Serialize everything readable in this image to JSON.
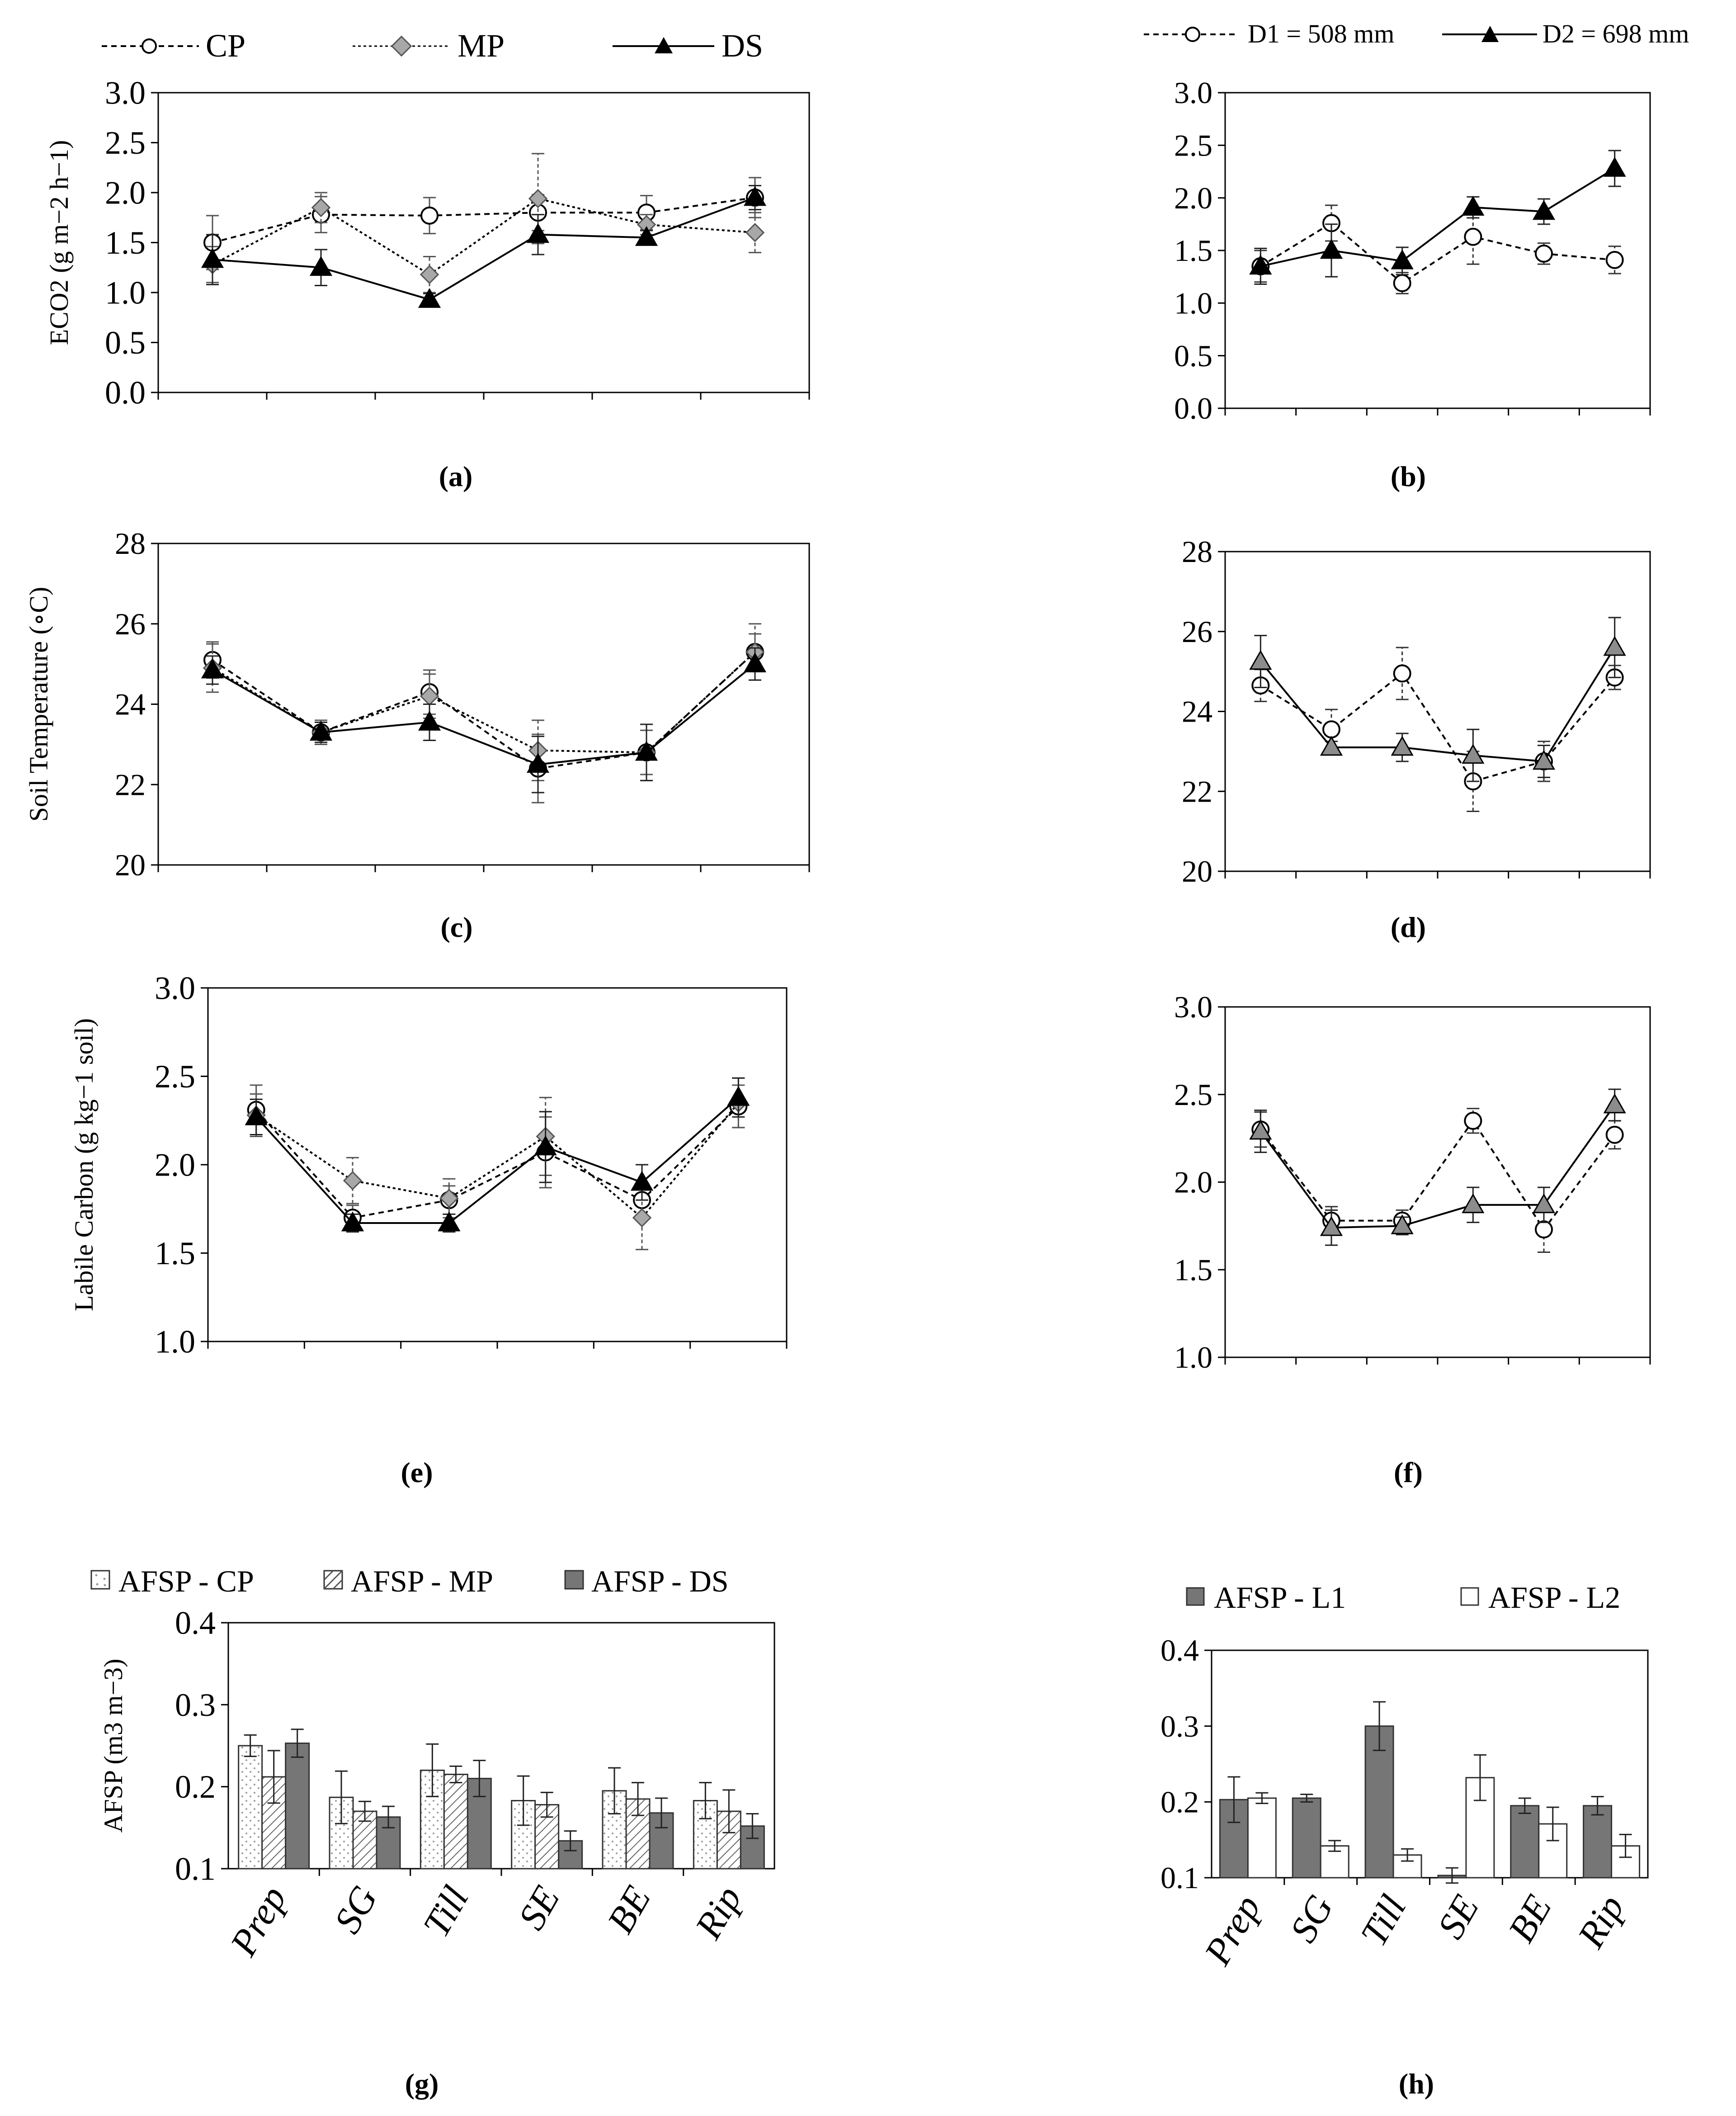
{
  "figure": {
    "panel_labels": [
      "(a)",
      "(b)",
      "(c)",
      "(d)",
      "(e)",
      "(f)",
      "(g)",
      "(h)"
    ]
  },
  "legends": {
    "tillage": {
      "items": [
        "CP",
        "MP",
        "DS"
      ]
    },
    "deficit": {
      "items": [
        "D1 = 508 mm",
        "D2 = 698 mm"
      ]
    },
    "afsp_tillage": {
      "items": [
        "AFSP - CP",
        "AFSP - MP",
        "AFSP - DS"
      ]
    },
    "afsp_layer": {
      "items": [
        "AFSP - L1",
        "AFSP - L2"
      ]
    }
  },
  "colors": {
    "cp_fill": "#ffffff",
    "mp_fill": "#a8a8a8",
    "ds_fill": "#000000",
    "tri_grey": "#8c8c8c",
    "bar_dark": "#767676",
    "bar_white": "#ffffff"
  },
  "chart_data": [
    {
      "id": "a",
      "type": "line",
      "ylabel": "ECO2 (g m−2 h−1)",
      "ylim": [
        0,
        3.0
      ],
      "yticks": [
        "0.0",
        "0.5",
        "1.0",
        "1.5",
        "2.0",
        "2.5",
        "3.0"
      ],
      "series": [
        {
          "name": "CP",
          "values": [
            1.5,
            1.78,
            1.77,
            1.8,
            1.8,
            1.95
          ],
          "errors": [
            0.27,
            0.18,
            0.18,
            0.18,
            0.17,
            0.2
          ]
        },
        {
          "name": "MP",
          "values": [
            1.28,
            1.85,
            1.18,
            1.94,
            1.68,
            1.6
          ],
          "errors": [
            0.18,
            0.15,
            0.18,
            0.45,
            0.1,
            0.2
          ]
        },
        {
          "name": "DS",
          "values": [
            1.33,
            1.25,
            0.93,
            1.58,
            1.55,
            1.95
          ],
          "errors": [
            0.25,
            0.18,
            0.06,
            0.2,
            0.07,
            0.12
          ]
        }
      ]
    },
    {
      "id": "b",
      "type": "line",
      "ylabel": "",
      "ylim": [
        0,
        3.0
      ],
      "yticks": [
        "0.0",
        "0.5",
        "1.0",
        "1.5",
        "2.0",
        "2.5",
        "3.0"
      ],
      "series": [
        {
          "name": "D1 = 508 mm",
          "values": [
            1.35,
            1.76,
            1.19,
            1.63,
            1.47,
            1.41
          ],
          "errors": [
            0.15,
            0.17,
            0.1,
            0.26,
            0.1,
            0.13
          ]
        },
        {
          "name": "D2 = 698 mm",
          "values": [
            1.35,
            1.5,
            1.4,
            1.91,
            1.87,
            2.28
          ],
          "errors": [
            0.17,
            0.25,
            0.13,
            0.1,
            0.12,
            0.17
          ]
        }
      ]
    },
    {
      "id": "c",
      "type": "line",
      "ylabel": "Soil Temperature (∘C)",
      "ylim": [
        20,
        28
      ],
      "yticks": [
        "20",
        "22",
        "24",
        "26",
        "28"
      ],
      "series": [
        {
          "name": "CP",
          "values": [
            25.1,
            23.3,
            24.3,
            22.4,
            22.8,
            25.3
          ],
          "errors": [
            0.45,
            0.3,
            0.55,
            0.85,
            0.55,
            0.45
          ]
        },
        {
          "name": "MP",
          "values": [
            24.9,
            23.3,
            24.2,
            22.85,
            22.8,
            25.3
          ],
          "errors": [
            0.6,
            0.25,
            0.55,
            0.75,
            0.7,
            0.7
          ]
        },
        {
          "name": "DS",
          "values": [
            24.85,
            23.3,
            23.55,
            22.5,
            22.8,
            25.0
          ],
          "errors": [
            0.35,
            0.25,
            0.45,
            0.7,
            0.7,
            0.4
          ]
        }
      ]
    },
    {
      "id": "d",
      "type": "line",
      "ylabel": "",
      "ylim": [
        20,
        28
      ],
      "yticks": [
        "20",
        "22",
        "24",
        "26",
        "28"
      ],
      "series": [
        {
          "name": "D1 = 508 mm",
          "values": [
            24.65,
            23.55,
            24.95,
            22.25,
            22.75,
            24.85
          ],
          "errors": [
            0.4,
            0.5,
            0.65,
            0.75,
            0.5,
            0.3
          ]
        },
        {
          "name": "D2 = 698 mm",
          "values": [
            25.25,
            23.1,
            23.1,
            22.9,
            22.75,
            25.6
          ],
          "errors": [
            0.65,
            0.15,
            0.35,
            0.65,
            0.4,
            0.75
          ]
        }
      ]
    },
    {
      "id": "e",
      "type": "line",
      "ylabel": "Labile Carbon (g kg−1 soil)",
      "ylim": [
        1.0,
        3.0
      ],
      "yticks": [
        "1.0",
        "1.5",
        "2.0",
        "2.5",
        "3.0"
      ],
      "series": [
        {
          "name": "CP",
          "values": [
            2.31,
            1.7,
            1.8,
            2.07,
            1.8,
            2.33
          ],
          "errors": [
            0.14,
            0.07,
            0.08,
            0.2,
            0.1,
            0.12
          ]
        },
        {
          "name": "MP",
          "values": [
            2.28,
            1.91,
            1.81,
            2.16,
            1.7,
            2.35
          ],
          "errors": [
            0.12,
            0.13,
            0.11,
            0.22,
            0.18,
            0.14
          ]
        },
        {
          "name": "DS",
          "values": [
            2.27,
            1.67,
            1.67,
            2.1,
            1.9,
            2.38
          ],
          "errors": [
            0.1,
            0.05,
            0.05,
            0.2,
            0.1,
            0.11
          ]
        }
      ]
    },
    {
      "id": "f",
      "type": "line",
      "ylabel": "",
      "ylim": [
        1.0,
        3.0
      ],
      "yticks": [
        "1.0",
        "1.5",
        "2.0",
        "2.5",
        "3.0"
      ],
      "series": [
        {
          "name": "D1 = 508 mm",
          "values": [
            2.3,
            1.78,
            1.78,
            2.35,
            1.73,
            2.27
          ],
          "errors": [
            0.1,
            0.08,
            0.06,
            0.07,
            0.13,
            0.08
          ]
        },
        {
          "name": "D2 = 698 mm",
          "values": [
            2.29,
            1.74,
            1.75,
            1.87,
            1.87,
            2.44
          ],
          "errors": [
            0.12,
            0.1,
            0.05,
            0.1,
            0.1,
            0.09
          ]
        }
      ]
    },
    {
      "id": "g",
      "type": "bar",
      "ylabel": "AFSP (m3 m−3)",
      "categories": [
        "Prep",
        "SG",
        "Till",
        "SE",
        "BE",
        "Rip"
      ],
      "ylim": [
        0.1,
        0.4
      ],
      "yticks": [
        "0.1",
        "0.2",
        "0.3",
        "0.4"
      ],
      "series": [
        {
          "name": "AFSP - CP",
          "values": [
            0.25,
            0.187,
            0.22,
            0.183,
            0.195,
            0.183
          ],
          "errors": [
            0.013,
            0.032,
            0.032,
            0.03,
            0.028,
            0.022
          ]
        },
        {
          "name": "AFSP - MP",
          "values": [
            0.212,
            0.17,
            0.215,
            0.178,
            0.185,
            0.17
          ],
          "errors": [
            0.032,
            0.012,
            0.01,
            0.015,
            0.02,
            0.026
          ]
        },
        {
          "name": "AFSP - DS",
          "values": [
            0.253,
            0.163,
            0.21,
            0.134,
            0.168,
            0.152
          ],
          "errors": [
            0.017,
            0.013,
            0.022,
            0.012,
            0.018,
            0.015
          ]
        }
      ]
    },
    {
      "id": "h",
      "type": "bar",
      "ylabel": "",
      "categories": [
        "Prep",
        "SG",
        "Till",
        "SE",
        "BE",
        "Rip"
      ],
      "ylim": [
        0.1,
        0.4
      ],
      "yticks": [
        "0.1",
        "0.2",
        "0.3",
        "0.4"
      ],
      "series": [
        {
          "name": "AFSP - L1",
          "values": [
            0.203,
            0.205,
            0.3,
            0.103,
            0.195,
            0.195
          ],
          "errors": [
            0.03,
            0.005,
            0.032,
            0.01,
            0.01,
            0.012
          ]
        },
        {
          "name": "AFSP - L2",
          "values": [
            0.205,
            0.142,
            0.13,
            0.232,
            0.171,
            0.142
          ],
          "errors": [
            0.007,
            0.007,
            0.008,
            0.03,
            0.022,
            0.015
          ]
        }
      ]
    }
  ]
}
